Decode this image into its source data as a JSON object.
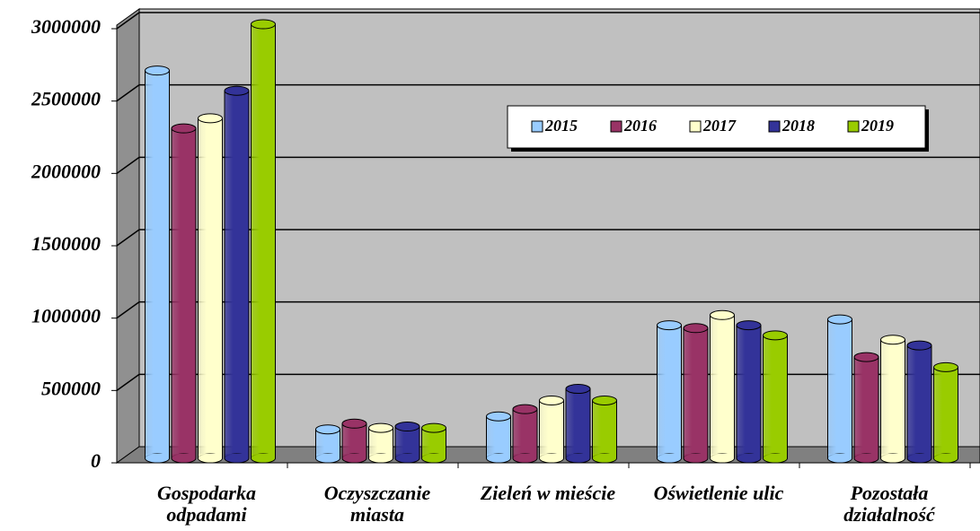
{
  "chart_data": {
    "type": "bar",
    "categories": [
      "Gospodarka\nodpadami",
      "Oczyszczanie\nmiasta",
      "Zieleń w mieście",
      "Oświetlenie ulic",
      "Pozostała\ndziałalność"
    ],
    "series": [
      {
        "name": "2015",
        "color": "#99ccff",
        "values": [
          2680000,
          200000,
          290000,
          920000,
          960000
        ]
      },
      {
        "name": "2016",
        "color": "#993366",
        "values": [
          2280000,
          240000,
          340000,
          900000,
          700000
        ]
      },
      {
        "name": "2017",
        "color": "#ffffcc",
        "values": [
          2350000,
          210000,
          400000,
          990000,
          820000
        ]
      },
      {
        "name": "2018",
        "color": "#333399",
        "values": [
          2540000,
          220000,
          480000,
          920000,
          780000
        ]
      },
      {
        "name": "2019",
        "color": "#99cc00",
        "values": [
          3000000,
          210000,
          400000,
          850000,
          630000
        ]
      }
    ],
    "ylim": [
      0,
      3000000
    ],
    "yticks": [
      0,
      500000,
      1000000,
      1500000,
      2000000,
      2500000,
      3000000
    ],
    "grid": true,
    "legend": "top-right"
  }
}
